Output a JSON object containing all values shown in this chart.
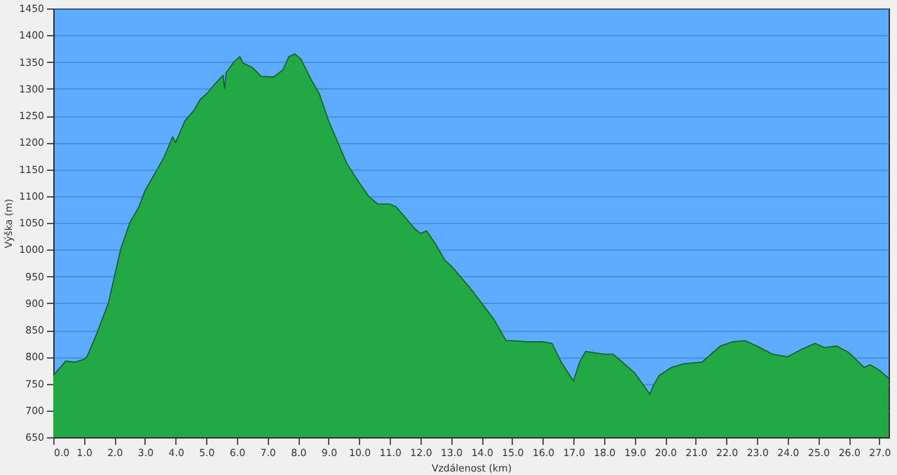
{
  "chart_data": {
    "type": "area",
    "xlabel": "Vzdálenost   (km)",
    "ylabel": "Výška (m)",
    "x": [
      0,
      0.3,
      0.4,
      0.7,
      1.0,
      1.1,
      1.4,
      1.8,
      2.0,
      2.2,
      2.5,
      2.8,
      3.0,
      3.3,
      3.6,
      3.9,
      4.0,
      4.3,
      4.6,
      4.8,
      5.0,
      5.3,
      5.55,
      5.6,
      5.65,
      5.9,
      6.1,
      6.2,
      6.5,
      6.8,
      7.2,
      7.5,
      7.7,
      7.9,
      8.1,
      8.4,
      8.7,
      9.0,
      9.3,
      9.6,
      10.0,
      10.3,
      10.6,
      11.0,
      11.2,
      11.5,
      11.8,
      12.0,
      12.2,
      12.5,
      12.8,
      13.0,
      13.3,
      13.6,
      14.0,
      14.4,
      14.8,
      15.0,
      15.5,
      16.0,
      16.3,
      16.6,
      17.0,
      17.2,
      17.4,
      18.0,
      18.3,
      18.6,
      19.0,
      19.5,
      19.6,
      19.8,
      20.2,
      20.6,
      21.2,
      21.8,
      22.2,
      22.6,
      23.0,
      23.5,
      24.0,
      24.5,
      24.9,
      25.2,
      25.6,
      26.0,
      26.5,
      26.7,
      27.0,
      27.3
    ],
    "series": [
      {
        "color": "#22a845",
        "values": [
          765,
          785,
          792,
          790,
          795,
          800,
          840,
          900,
          950,
          1000,
          1050,
          1080,
          1110,
          1140,
          1170,
          1210,
          1200,
          1240,
          1260,
          1280,
          1290,
          1310,
          1325,
          1300,
          1330,
          1350,
          1360,
          1348,
          1340,
          1323,
          1322,
          1335,
          1360,
          1365,
          1355,
          1320,
          1290,
          1240,
          1200,
          1160,
          1125,
          1100,
          1085,
          1085,
          1080,
          1060,
          1040,
          1030,
          1035,
          1010,
          980,
          970,
          950,
          930,
          900,
          870,
          830,
          830,
          828,
          828,
          825,
          790,
          755,
          790,
          810,
          805,
          805,
          790,
          770,
          730,
          745,
          765,
          780,
          787,
          790,
          820,
          828,
          830,
          820,
          805,
          800,
          815,
          825,
          817,
          820,
          808,
          780,
          785,
          775,
          760
        ]
      }
    ],
    "xlim": [
      0,
      27.3
    ],
    "xticks": [
      {
        "value": 0,
        "label": "0.0"
      },
      {
        "value": 1,
        "label": "1.0"
      },
      {
        "value": 2,
        "label": "2.0"
      },
      {
        "value": 3,
        "label": "3.0"
      },
      {
        "value": 4,
        "label": "4.0"
      },
      {
        "value": 5,
        "label": "5.0"
      },
      {
        "value": 6,
        "label": "6.0"
      },
      {
        "value": 7,
        "label": "7.0"
      },
      {
        "value": 8,
        "label": "8.0"
      },
      {
        "value": 9,
        "label": "9.0"
      },
      {
        "value": 10,
        "label": "10.0"
      },
      {
        "value": 11,
        "label": "11.0"
      },
      {
        "value": 12,
        "label": "12.0"
      },
      {
        "value": 13,
        "label": "13.0"
      },
      {
        "value": 14,
        "label": "14.0"
      },
      {
        "value": 15,
        "label": "15.0"
      },
      {
        "value": 16,
        "label": "16.0"
      },
      {
        "value": 17,
        "label": "17.0"
      },
      {
        "value": 18,
        "label": "18.0"
      },
      {
        "value": 19,
        "label": "19.0"
      },
      {
        "value": 20,
        "label": "20.0"
      },
      {
        "value": 21,
        "label": "21.0"
      },
      {
        "value": 22,
        "label": "22.0"
      },
      {
        "value": 23,
        "label": "23.0"
      },
      {
        "value": 24,
        "label": "24.0"
      },
      {
        "value": 25,
        "label": "25.0"
      },
      {
        "value": 26,
        "label": "26.0"
      },
      {
        "value": 27,
        "label": "27.0"
      }
    ],
    "ylim": [
      650,
      1450
    ],
    "yticks": [
      650,
      700,
      750,
      800,
      850,
      900,
      950,
      1000,
      1050,
      1100,
      1150,
      1200,
      1250,
      1300,
      1350,
      1400,
      1450
    ],
    "grid": "y"
  }
}
